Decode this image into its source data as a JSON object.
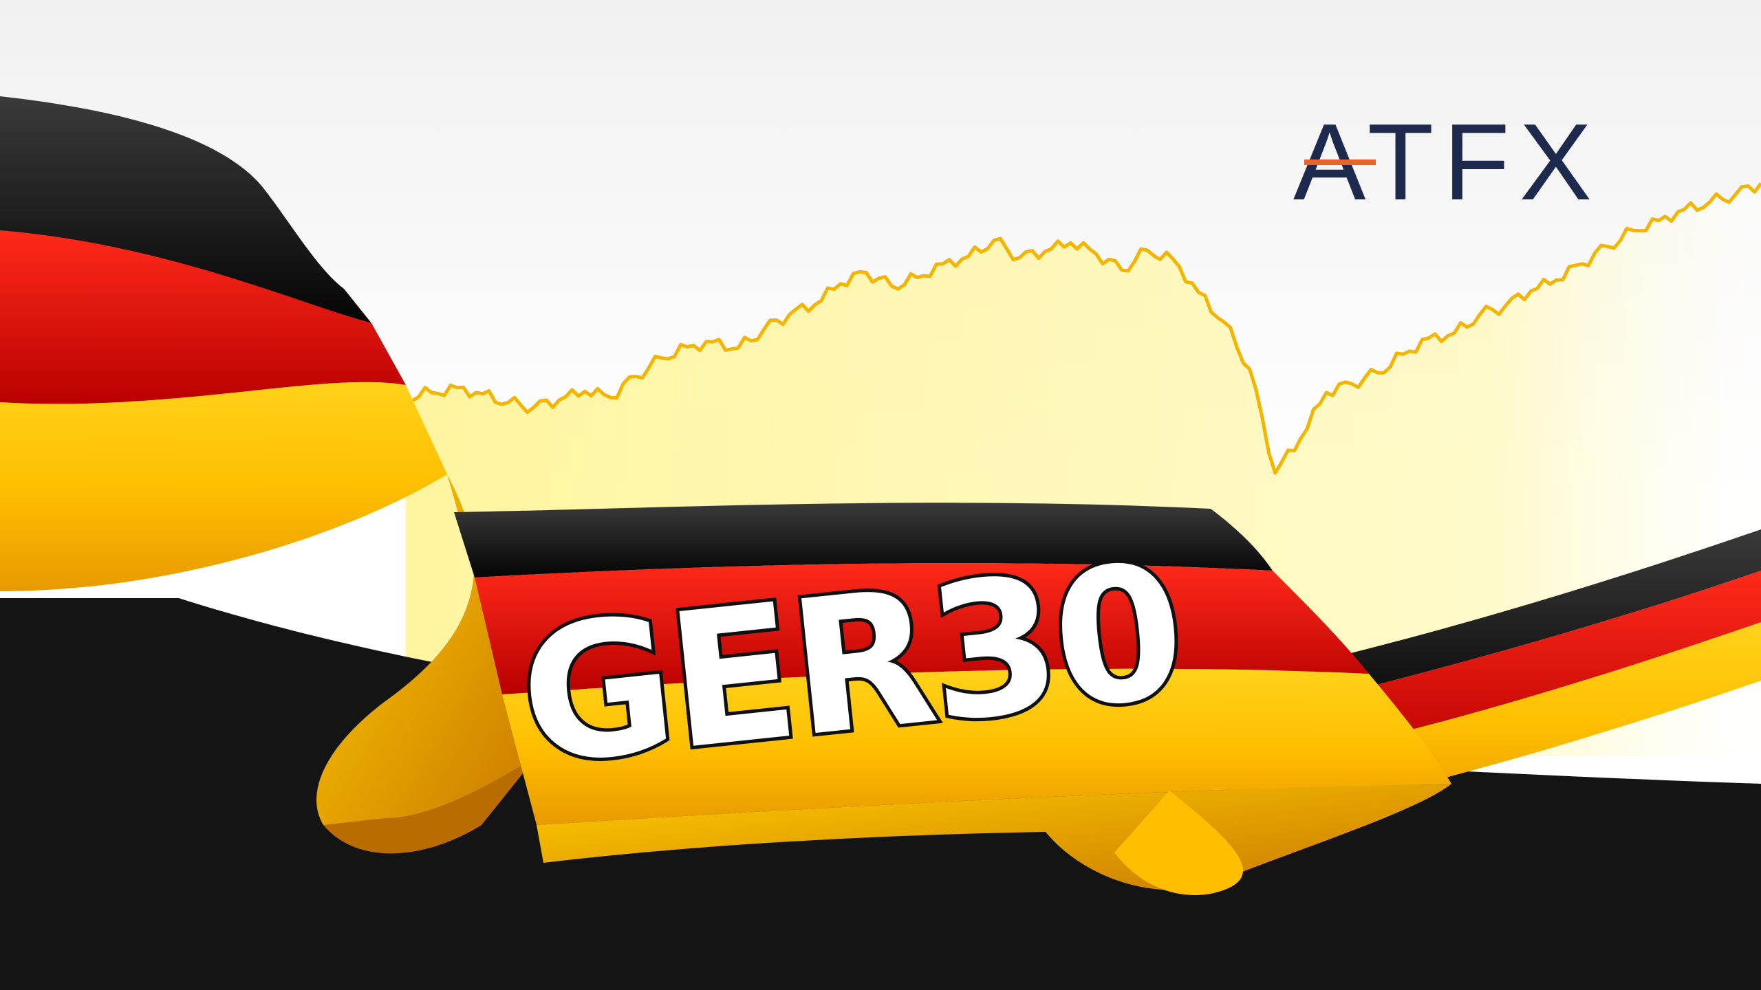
{
  "brand": {
    "logo_text": "ATFX",
    "logo_color": "#1d2a4d",
    "logo_accent_color": "#e8642b"
  },
  "banner": {
    "title": "GER30"
  },
  "colors": {
    "black_stripe": "#0b0b0b",
    "red_stripe": "#e00000",
    "gold_stripe": "#ffcc00",
    "chart_line": "#f4b400",
    "chart_fill": "#fff59a",
    "background": "#ffffff",
    "dark_panel": "#111111"
  },
  "chart_data": {
    "type": "area",
    "values": [
      10.2,
      10.5,
      10.9,
      10.4,
      9.7,
      9.3,
      9.9,
      10.6,
      10.1,
      11.8,
      13.3,
      14.2,
      14.6,
      14.1,
      15.6,
      16.8,
      17.6,
      19.3,
      20.2,
      19.1,
      19.8,
      20.9,
      21.5,
      22.8,
      21.4,
      21.9,
      22.6,
      21.7,
      20.4,
      22.0,
      21.3,
      18.6,
      16.2,
      12.4,
      4.0,
      6.8,
      10.5,
      11.2,
      12.1,
      13.6,
      14.9,
      15.3,
      16.8,
      17.5,
      18.7,
      19.6,
      20.9,
      22.3,
      23.6,
      24.4,
      25.3,
      25.9,
      26.5,
      27.4
    ],
    "line_color": "#f4b400",
    "fill_color": "#fff59a"
  }
}
